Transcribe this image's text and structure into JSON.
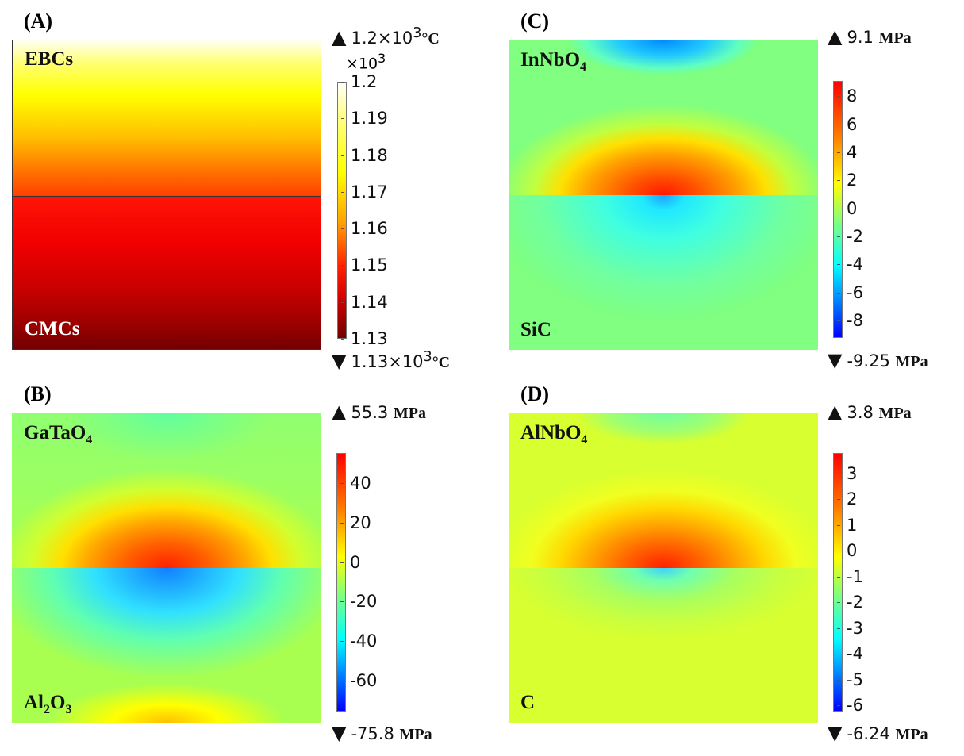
{
  "panels": {
    "A": {
      "label": "(A)",
      "top_material": "EBCs",
      "bottom_material": "CMCs",
      "max": {
        "value": "1.2×10",
        "exp": "3",
        "unit": "°C"
      },
      "min": {
        "value": "1.13×10",
        "exp": "3",
        "unit": "°C"
      },
      "multiplier": "×10",
      "multiplier_exp": "3"
    },
    "B": {
      "label": "(B)",
      "top_material": {
        "base": "GaTaO",
        "sub": "4"
      },
      "bottom_material": {
        "parts": [
          "Al",
          "2",
          "O",
          "3"
        ]
      },
      "max": {
        "value": "55.3",
        "unit": "MPa"
      },
      "min": {
        "value": "-75.8",
        "unit": "MPa"
      }
    },
    "C": {
      "label": "(C)",
      "top_material": {
        "base": "InNbO",
        "sub": "4"
      },
      "bottom_material": "SiC",
      "max": {
        "value": "9.1",
        "unit": "MPa"
      },
      "min": {
        "value": "-9.25",
        "unit": "MPa"
      }
    },
    "D": {
      "label": "(D)",
      "top_material": {
        "base": "AlNbO",
        "sub": "4"
      },
      "bottom_material": "C",
      "max": {
        "value": "3.8",
        "unit": "MPa"
      },
      "min": {
        "value": "-6.24",
        "unit": "MPa"
      }
    }
  },
  "chart_data": [
    {
      "type": "heatmap",
      "panel": "A",
      "quantity_unit": "°C",
      "colormap": "heat",
      "range": [
        1130,
        1200
      ],
      "colorbar_ticks": [
        "1.2",
        "1.19",
        "1.18",
        "1.17",
        "1.16",
        "1.15",
        "1.14",
        "1.13"
      ],
      "colorbar_tick_values": [
        1.2,
        1.19,
        1.18,
        1.17,
        1.16,
        1.15,
        1.14,
        1.13
      ]
    },
    {
      "type": "heatmap",
      "panel": "B",
      "quantity_unit": "MPa",
      "colormap": "rainbow",
      "range": [
        -75.8,
        55.3
      ],
      "colorbar_ticks": [
        "40",
        "20",
        "0",
        "-20",
        "-40",
        "-60"
      ],
      "colorbar_tick_values": [
        40,
        20,
        0,
        -20,
        -40,
        -60
      ]
    },
    {
      "type": "heatmap",
      "panel": "C",
      "quantity_unit": "MPa",
      "colormap": "rainbow",
      "range": [
        -9.25,
        9.1
      ],
      "colorbar_ticks": [
        "8",
        "6",
        "4",
        "2",
        "0",
        "-2",
        "-4",
        "-6",
        "-8"
      ],
      "colorbar_tick_values": [
        8,
        6,
        4,
        2,
        0,
        -2,
        -4,
        -6,
        -8
      ]
    },
    {
      "type": "heatmap",
      "panel": "D",
      "quantity_unit": "MPa",
      "colormap": "rainbow",
      "range": [
        -6.24,
        3.8
      ],
      "colorbar_ticks": [
        "3",
        "2",
        "1",
        "0",
        "-1",
        "-2",
        "-3",
        "-4",
        "-5",
        "-6"
      ],
      "colorbar_tick_values": [
        3,
        2,
        1,
        0,
        -1,
        -2,
        -3,
        -4,
        -5,
        -6
      ]
    }
  ]
}
